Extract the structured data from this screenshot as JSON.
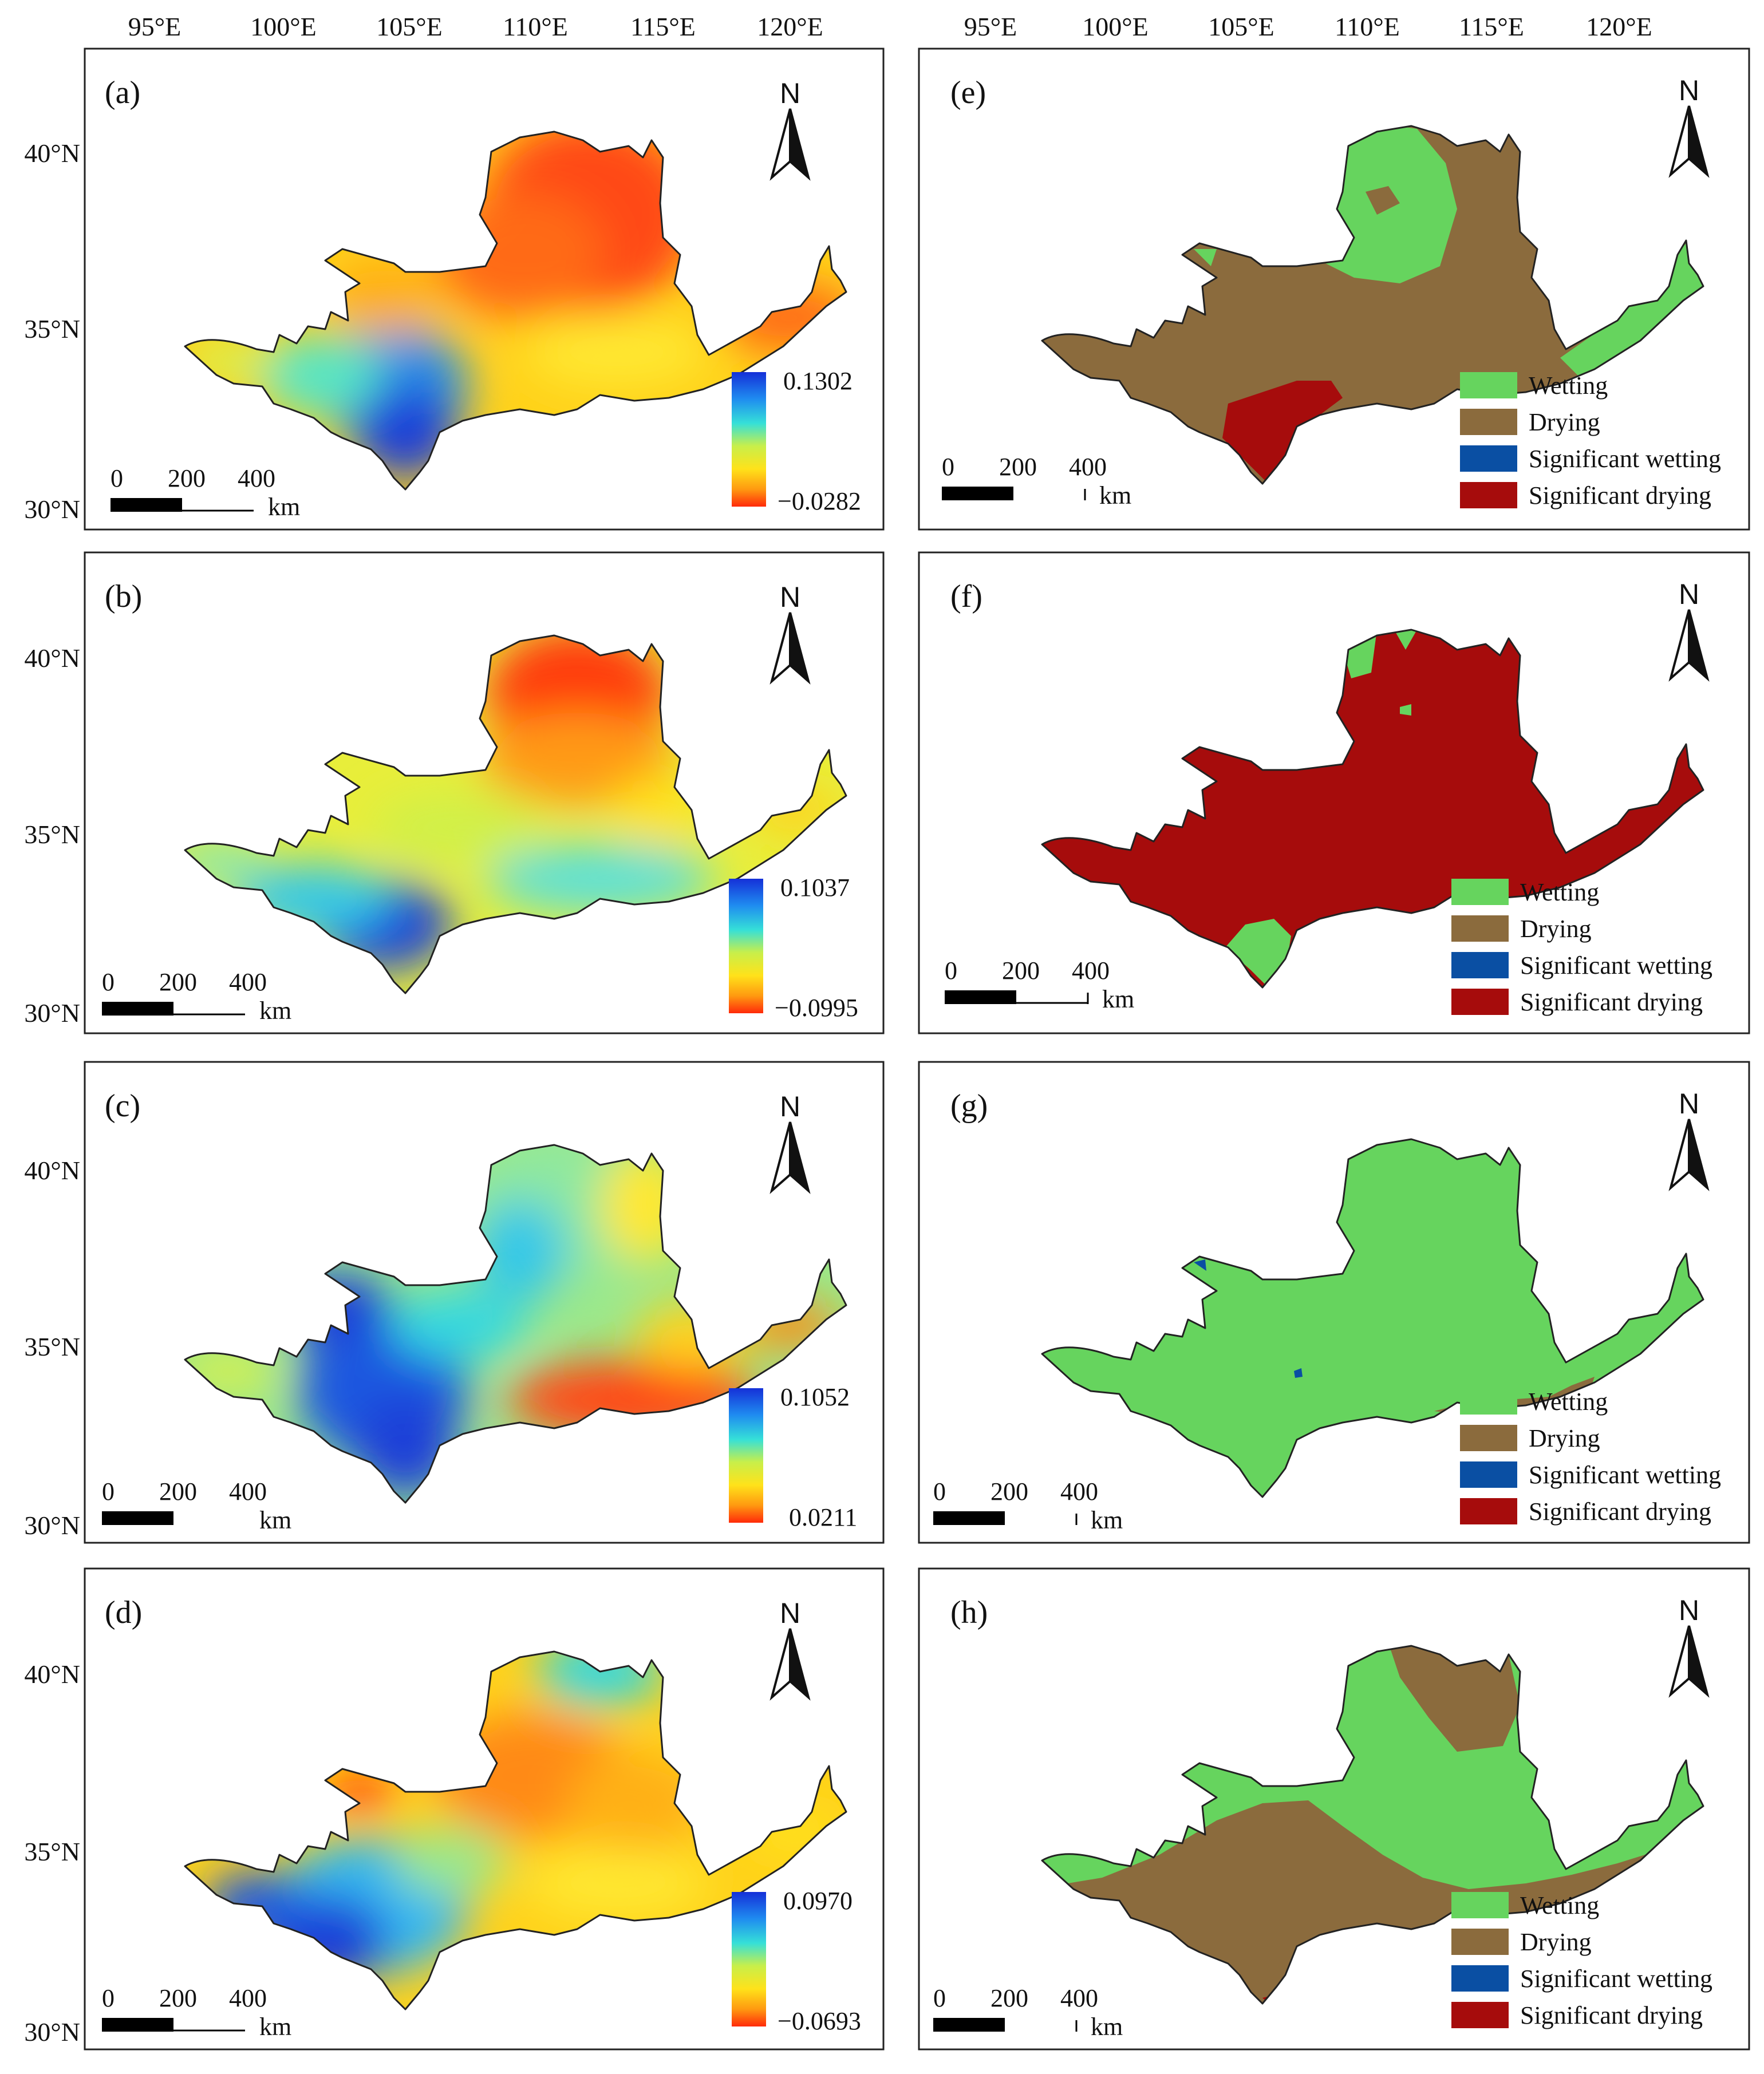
{
  "figure": {
    "top_axis_labels": [
      "95°E",
      "100°E",
      "105°E",
      "110°E",
      "115°E",
      "120°E"
    ],
    "left_axis_labels": [
      "40°N",
      "35°N",
      "30°N"
    ],
    "north_label": "N",
    "scale_bar": {
      "ticks": [
        "0",
        "200",
        "400"
      ],
      "unit": "km"
    },
    "legend": {
      "items": [
        {
          "label": "Wetting",
          "color": "#66d45e"
        },
        {
          "label": "Drying",
          "color": "#8b6b3d"
        },
        {
          "label": "Significant wetting",
          "color": "#0a4fa3"
        },
        {
          "label": "Significant drying",
          "color": "#a60c0c"
        }
      ]
    },
    "left_panels": [
      {
        "label": "(a)",
        "max": "0.1302",
        "min": "−0.0282"
      },
      {
        "label": "(b)",
        "max": "0.1037",
        "min": "−0.0995"
      },
      {
        "label": "(c)",
        "max": "0.1052",
        "min": "0.0211"
      },
      {
        "label": "(d)",
        "max": "0.0970",
        "min": "−0.0693"
      }
    ],
    "right_panels": [
      {
        "label": "(e)"
      },
      {
        "label": "(f)"
      },
      {
        "label": "(g)"
      },
      {
        "label": "(h)"
      }
    ],
    "colors": {
      "wetting": "#66d45e",
      "drying": "#8b6b3d",
      "sig_wetting": "#0a4fa3",
      "sig_drying": "#a60c0c"
    }
  }
}
